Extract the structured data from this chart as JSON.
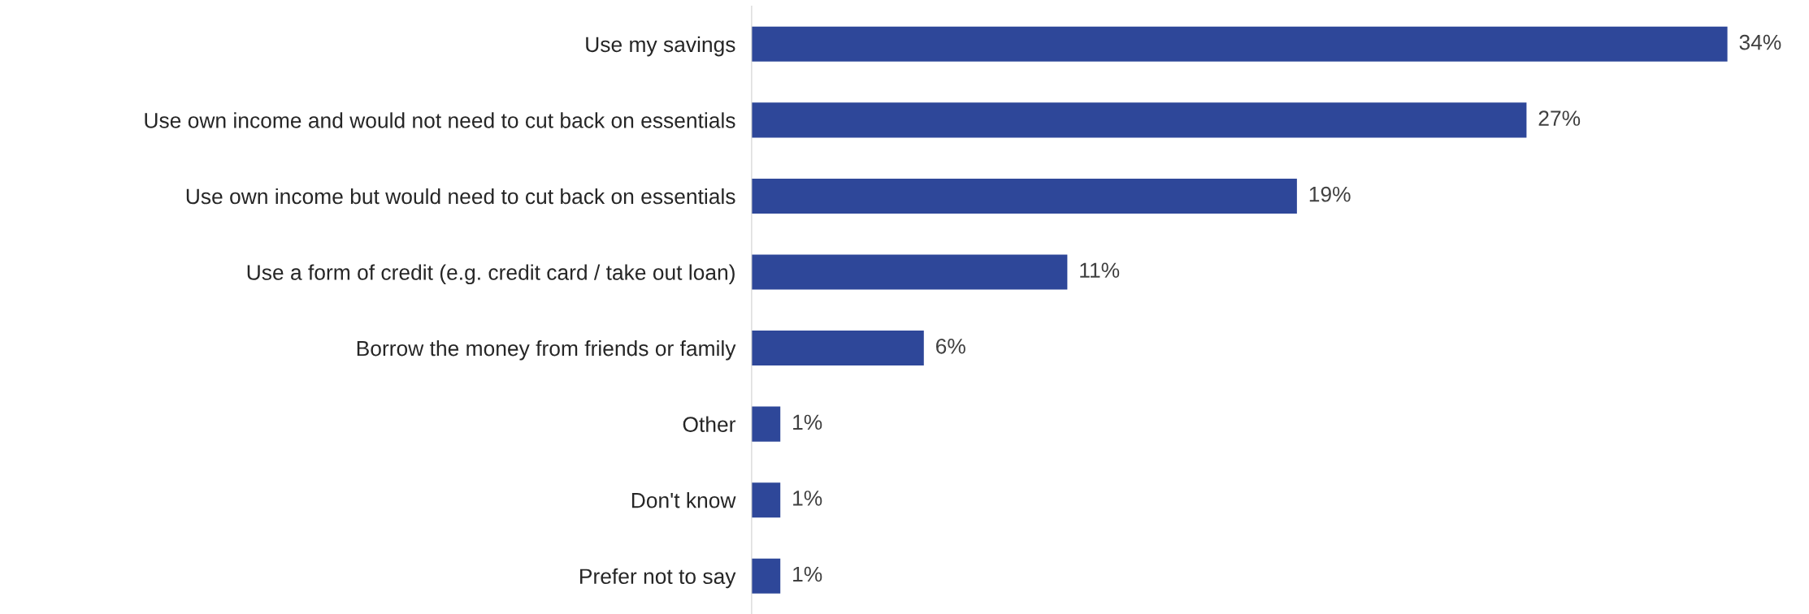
{
  "chart_data": {
    "type": "bar",
    "orientation": "horizontal",
    "categories": [
      "Use my savings",
      "Use own income and would not need to cut back on essentials",
      "Use own income but would need to cut back on essentials",
      "Use a form of credit (e.g. credit card / take out loan)",
      "Borrow the money from friends or family",
      "Other",
      "Don't know",
      "Prefer not to say"
    ],
    "values": [
      34,
      27,
      19,
      11,
      6,
      1,
      1,
      1
    ],
    "value_labels": [
      "34%",
      "27%",
      "19%",
      "11%",
      "6%",
      "1%",
      "1%",
      "1%"
    ],
    "color": "#2e4799",
    "grid": false,
    "legend": false
  }
}
